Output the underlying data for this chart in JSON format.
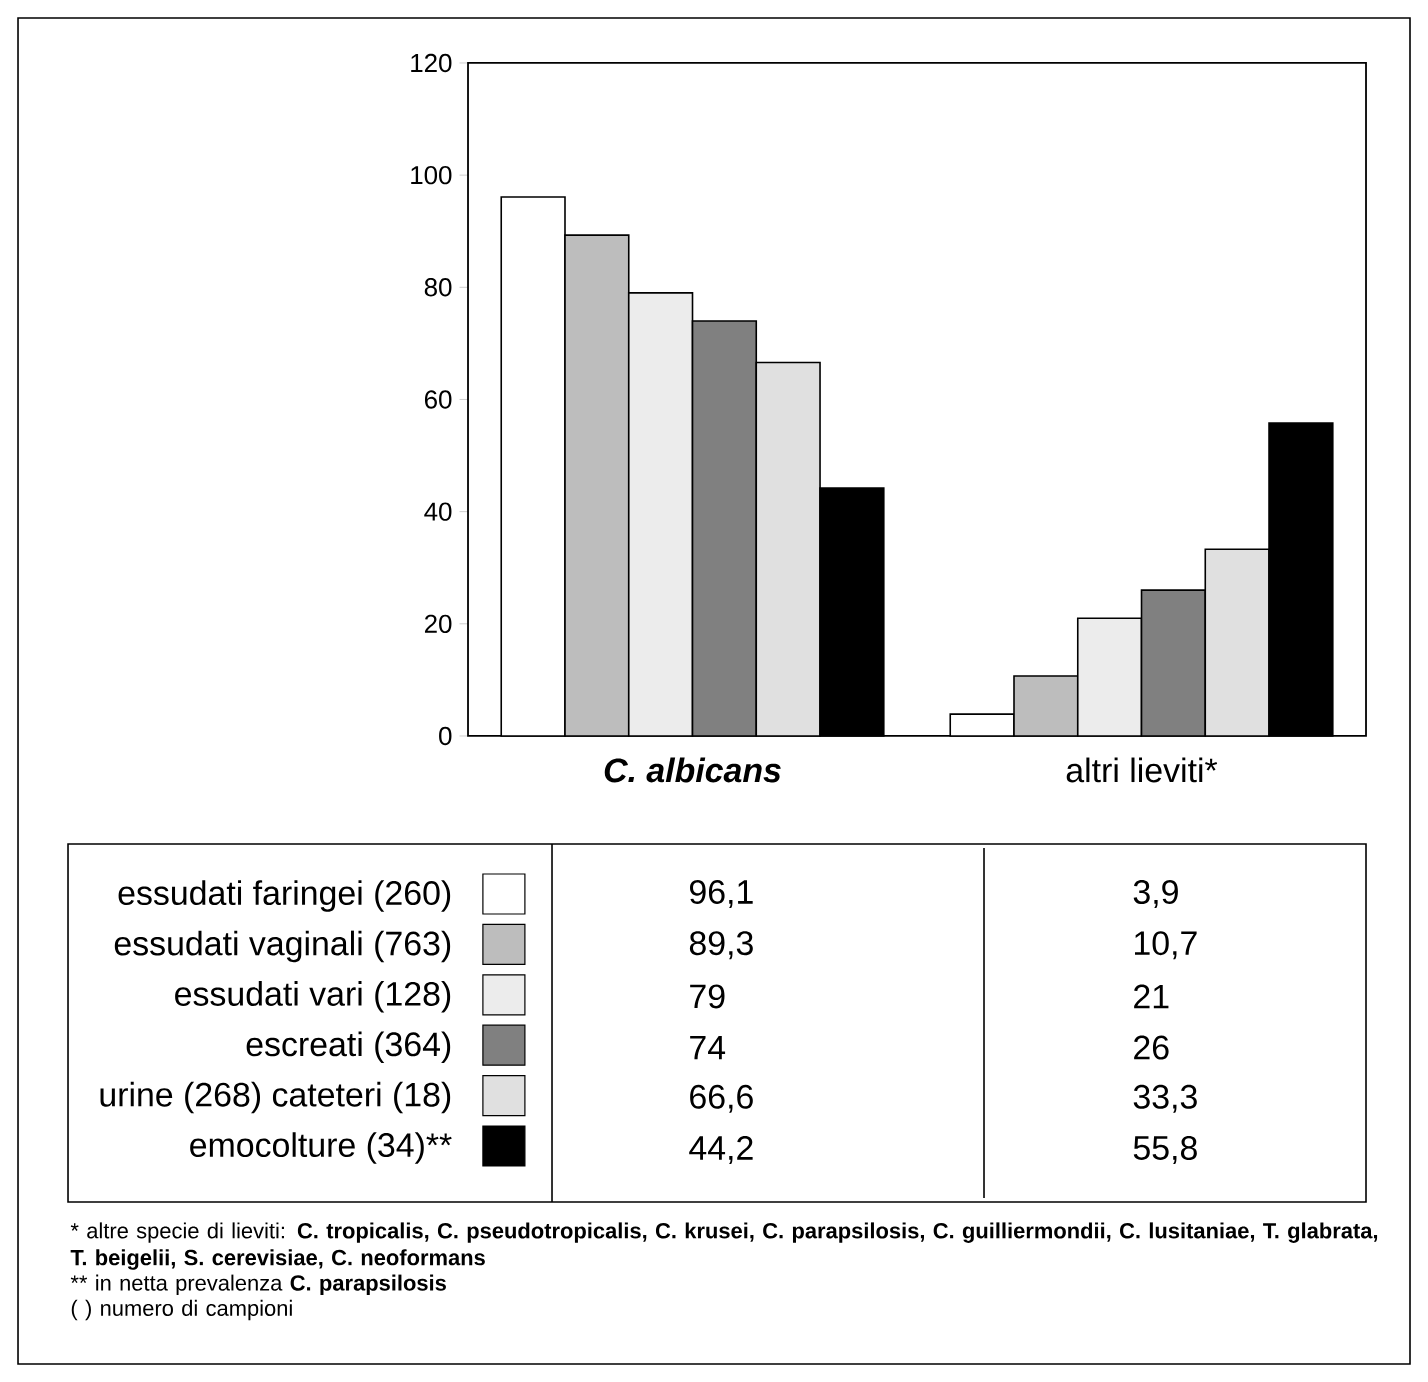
{
  "chart_data": {
    "type": "bar",
    "categories": [
      "C. albicans",
      "altri lieviti*"
    ],
    "series": [
      {
        "name": "essudati faringei (260)",
        "color": "#ffffff",
        "values": [
          96.1,
          3.9
        ],
        "value_labels": [
          "96,1",
          "3,9"
        ]
      },
      {
        "name": "essudati vaginali (763)",
        "color": "#bdbdbd",
        "values": [
          89.3,
          10.7
        ],
        "value_labels": [
          "89,3",
          "10,7"
        ]
      },
      {
        "name": "essudati vari (128)",
        "color": "#ececec",
        "values": [
          79,
          21
        ],
        "value_labels": [
          "79",
          "21"
        ]
      },
      {
        "name": "escreati (364)",
        "color": "#808080",
        "values": [
          74,
          26
        ],
        "value_labels": [
          "74",
          "26"
        ]
      },
      {
        "name": "urine (268) cateteri (18)",
        "color": "#e0e0e0",
        "values": [
          66.6,
          33.3
        ],
        "value_labels": [
          "66,6",
          "33,3"
        ]
      },
      {
        "name": "emocolture (34)**",
        "color": "#000000",
        "values": [
          44.2,
          55.8
        ],
        "value_labels": [
          "44,2",
          "55,8"
        ]
      }
    ],
    "ylim": [
      0,
      120
    ],
    "yticks": [
      0,
      20,
      40,
      60,
      80,
      100,
      120
    ],
    "legend": "bottom",
    "annotations": [
      "* altre specie di lieviti: **C. tropicalis, C. pseudotropicalis, C. krusei, C. parapsilosis, C. guilliermondii, C. lusitaniae, T. glabrata, T. beigelii, S. cerevisiae, C. neoformans**",
      "** in netta prevalenza **C. parapsilosis**",
      "( ) numero di campioni"
    ]
  }
}
